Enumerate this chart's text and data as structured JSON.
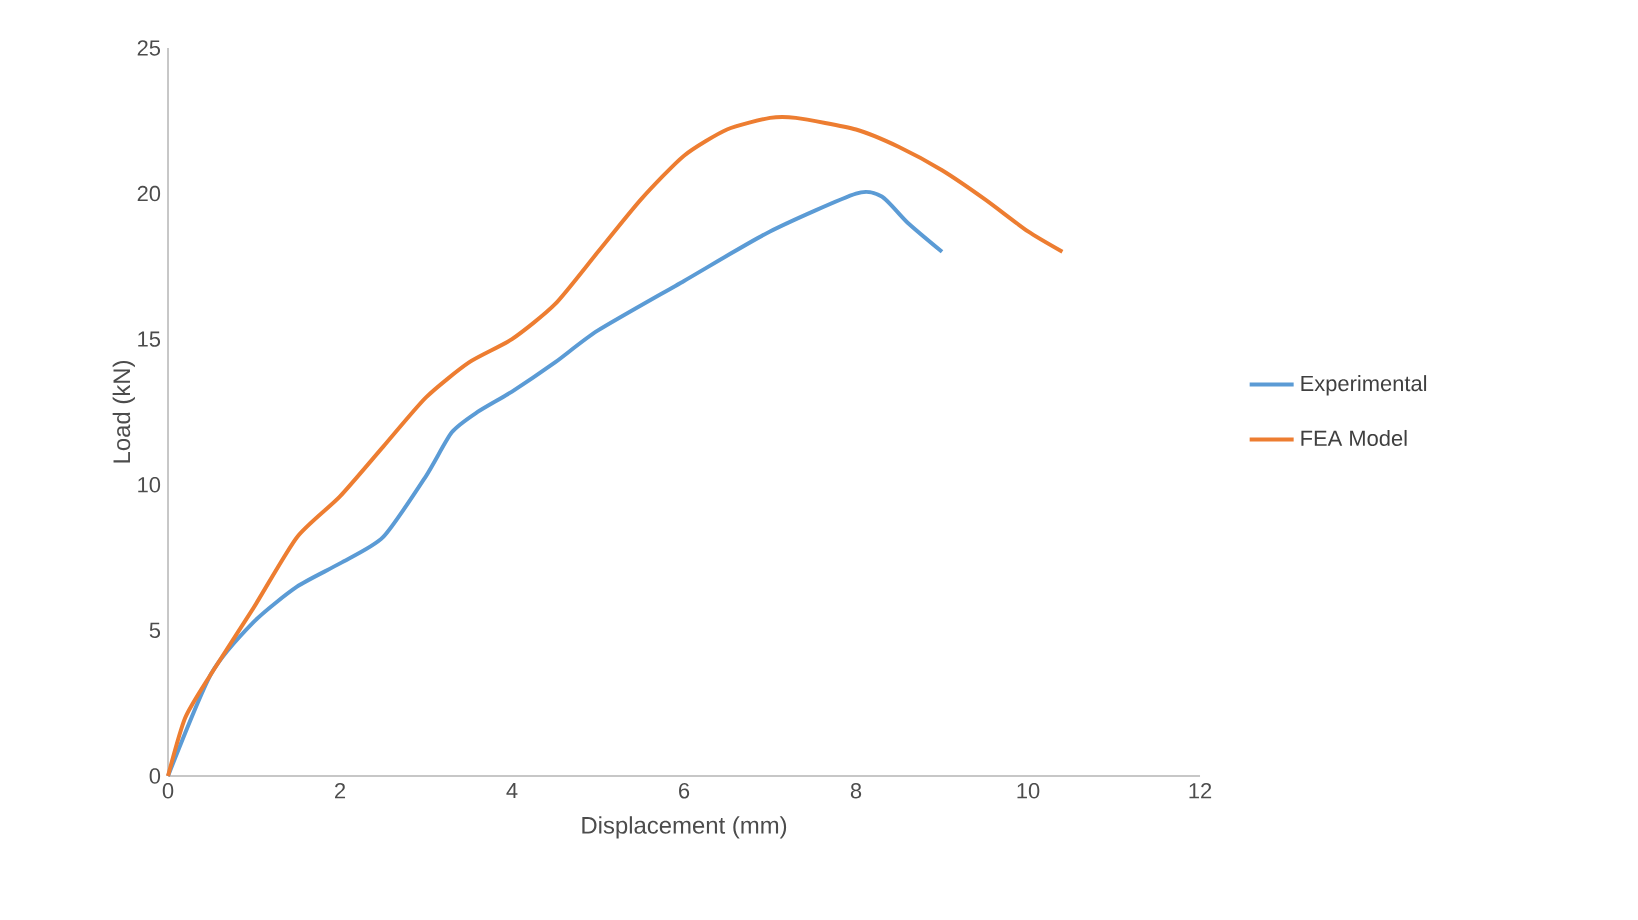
{
  "chart_data": {
    "type": "line",
    "xlabel": "Displacement (mm)",
    "ylabel": "Load (kN)",
    "xlim": [
      0,
      12
    ],
    "xticks": [
      0,
      2,
      4,
      6,
      8,
      10,
      12
    ],
    "ylim": [
      0,
      25
    ],
    "yticks": [
      0,
      5,
      10,
      15,
      20,
      25
    ],
    "grid": false,
    "legend": "right",
    "marker": "none",
    "line_style": "solid",
    "series": [
      {
        "name": "Experimental",
        "color": "#5b9bd5",
        "x": [
          0,
          0.2,
          0.5,
          1,
          1.5,
          2,
          2.5,
          3,
          3.3,
          3.6,
          4,
          4.5,
          5,
          6,
          7,
          8,
          8.3,
          8.6,
          9
        ],
        "values": [
          0,
          null,
          3.5,
          5.3,
          6.5,
          7.3,
          8.2,
          10.3,
          11.8,
          12.5,
          13.2,
          14.2,
          15.3,
          17,
          18.7,
          20,
          19.9,
          19,
          18
        ]
      },
      {
        "name": "FEA Model",
        "color": "#ed7d31",
        "x": [
          0,
          0.2,
          0.5,
          1,
          1.5,
          2,
          2.5,
          3,
          3.5,
          4,
          4.5,
          5,
          5.5,
          6,
          6.5,
          7,
          7.3,
          8,
          8.5,
          9,
          9.5,
          10,
          10.4
        ],
        "values": [
          0,
          2,
          3.5,
          5.8,
          8.2,
          9.6,
          11.3,
          13,
          14.2,
          15,
          16.2,
          18,
          19.8,
          21.3,
          22.2,
          22.6,
          22.6,
          22.2,
          21.6,
          20.8,
          19.8,
          18.7,
          18
        ]
      }
    ]
  }
}
